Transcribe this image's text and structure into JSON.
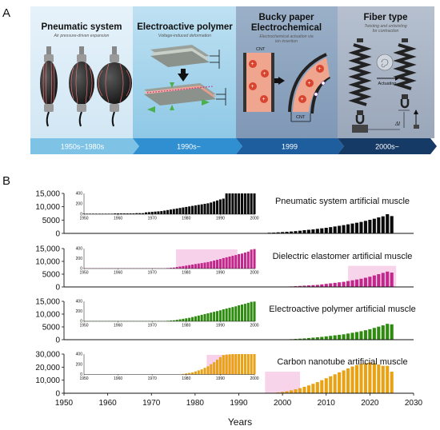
{
  "panel_a": {
    "letter": "A",
    "sections": [
      {
        "title": "Pneumatic system",
        "subtitle": "Air pressure-driven expansion",
        "era": "1950s~1980s"
      },
      {
        "title": "Electroactive polymer",
        "subtitle": "Voltage-induced deformation",
        "era": "1990s~"
      },
      {
        "title_line1": "Bucky paper",
        "title_line2": "Electrochemical",
        "subtitle_line1": "Electrochemical actuation via",
        "subtitle_line2": "ion insertion",
        "era": "1999"
      },
      {
        "title": "Fiber type",
        "subtitle_line1": "Twisting and untwisting",
        "subtitle_line2": "for contraction",
        "era": "2000s~"
      }
    ],
    "labels": {
      "cnt_top": "CNT",
      "cnt_bottom": "CNT",
      "actuating": "Actuating",
      "delta_l": "Δl"
    },
    "colors": {
      "pneumatic_bg": "#dfeef8",
      "eap_bg": "#9ccfe8",
      "bucky_bg": "#8aa2bd",
      "fiber_bg": "#a9b4c4",
      "arrow1": "#7ec3e6",
      "arrow2": "#2f8fd0",
      "arrow3": "#1f5e9e",
      "arrow4": "#163a66"
    }
  },
  "panel_b": {
    "letter": "B",
    "xlabel": "Years",
    "xlim": [
      1950,
      2030
    ],
    "xticks": [
      1950,
      1960,
      1970,
      1980,
      1990,
      2000,
      2010,
      2020,
      2030
    ],
    "inset_xticks": [
      "1950",
      "1960",
      "1970",
      "1980",
      "1990",
      "2000"
    ],
    "inset_yticks": [
      "0",
      "200",
      "400"
    ]
  },
  "chart_data": [
    {
      "type": "bar",
      "title": "Pneumatic system artificial muscle",
      "color": "#0a0a0a",
      "ylim": [
        0,
        15000
      ],
      "yticks": [
        "0",
        "5000",
        "10,000",
        "15,000"
      ],
      "x": [
        1950,
        1951,
        1952,
        1953,
        1954,
        1955,
        1956,
        1957,
        1958,
        1959,
        1960,
        1961,
        1962,
        1963,
        1964,
        1965,
        1966,
        1967,
        1968,
        1969,
        1970,
        1971,
        1972,
        1973,
        1974,
        1975,
        1976,
        1977,
        1978,
        1979,
        1980,
        1981,
        1982,
        1983,
        1984,
        1985,
        1986,
        1987,
        1988,
        1989,
        1990,
        1991,
        1992,
        1993,
        1994,
        1995,
        1996,
        1997,
        1998,
        1999,
        2000,
        2001,
        2002,
        2003,
        2004,
        2005,
        2006,
        2007,
        2008,
        2009,
        2010,
        2011,
        2012,
        2013,
        2014,
        2015,
        2016,
        2017,
        2018,
        2019,
        2020,
        2021,
        2022,
        2023,
        2024,
        2025
      ],
      "values": [
        0,
        0,
        0,
        0,
        0,
        0,
        0,
        0,
        0,
        0,
        0,
        0,
        0,
        0,
        0,
        0,
        0,
        0,
        0,
        0,
        0,
        0,
        0,
        0,
        0,
        0,
        0,
        0,
        0,
        0,
        0,
        0,
        0,
        0,
        0,
        0,
        0,
        0,
        0,
        0,
        0,
        0,
        0,
        0,
        0,
        100,
        150,
        250,
        300,
        400,
        500,
        600,
        700,
        850,
        1000,
        1200,
        1350,
        1500,
        1700,
        1900,
        2100,
        2350,
        2600,
        2850,
        3100,
        3400,
        3700,
        4000,
        4300,
        4700,
        5100,
        5500,
        6000,
        6400,
        7200,
        6500
      ],
      "inset": {
        "ylim": [
          0,
          400
        ],
        "highlight_range": [],
        "values": [
          10,
          10,
          10,
          10,
          10,
          10,
          10,
          10,
          10,
          10,
          15,
          15,
          15,
          15,
          15,
          15,
          15,
          20,
          20,
          20,
          35,
          40,
          45,
          50,
          55,
          60,
          70,
          80,
          90,
          100,
          110,
          120,
          130,
          140,
          150,
          160,
          170,
          180,
          190,
          200,
          210,
          225,
          245,
          265,
          285,
          300,
          400,
          400,
          400,
          400,
          400,
          400,
          400,
          400,
          400,
          400
        ]
      }
    },
    {
      "type": "bar",
      "title": "Dielectric elastomer artificial muscle",
      "color": "#c2278b",
      "highlight_color": "#f6c9e6",
      "ylim": [
        0,
        15000
      ],
      "yticks": [
        "0",
        "5000",
        "10,000",
        "15,000"
      ],
      "x": [
        1950,
        1951,
        1952,
        1953,
        1954,
        1955,
        1956,
        1957,
        1958,
        1959,
        1960,
        1961,
        1962,
        1963,
        1964,
        1965,
        1966,
        1967,
        1968,
        1969,
        1970,
        1971,
        1972,
        1973,
        1974,
        1975,
        1976,
        1977,
        1978,
        1979,
        1980,
        1981,
        1982,
        1983,
        1984,
        1985,
        1986,
        1987,
        1988,
        1989,
        1990,
        1991,
        1992,
        1993,
        1994,
        1995,
        1996,
        1997,
        1998,
        1999,
        2000,
        2001,
        2002,
        2003,
        2004,
        2005,
        2006,
        2007,
        2008,
        2009,
        2010,
        2011,
        2012,
        2013,
        2014,
        2015,
        2016,
        2017,
        2018,
        2019,
        2020,
        2021,
        2022,
        2023,
        2024,
        2025
      ],
      "values": [
        0,
        0,
        0,
        0,
        0,
        0,
        0,
        0,
        0,
        0,
        0,
        0,
        0,
        0,
        0,
        0,
        0,
        0,
        0,
        0,
        0,
        0,
        0,
        0,
        0,
        0,
        0,
        0,
        0,
        0,
        0,
        0,
        0,
        0,
        0,
        0,
        0,
        0,
        0,
        0,
        0,
        0,
        0,
        0,
        0,
        0,
        0,
        0,
        0,
        0,
        0,
        100,
        200,
        300,
        400,
        500,
        600,
        700,
        800,
        1000,
        1200,
        1400,
        1600,
        1800,
        2000,
        2300,
        2600,
        2900,
        3200,
        3600,
        4000,
        4500,
        5000,
        5500,
        6000,
        5600
      ],
      "highlight_range": [
        2015,
        2026
      ],
      "inset": {
        "ylim": [
          0,
          400
        ],
        "highlight_range": [
          1977,
          1995
        ],
        "values": [
          5,
          5,
          5,
          5,
          5,
          5,
          5,
          5,
          5,
          5,
          5,
          5,
          5,
          5,
          5,
          5,
          5,
          5,
          5,
          5,
          5,
          5,
          5,
          5,
          5,
          5,
          5,
          10,
          15,
          20,
          30,
          40,
          50,
          60,
          70,
          80,
          90,
          100,
          110,
          120,
          130,
          145,
          160,
          175,
          190,
          210,
          225,
          240,
          255,
          270,
          290,
          300,
          320,
          340,
          380,
          390
        ]
      }
    },
    {
      "type": "bar",
      "title": "Electroactive polymer artificial muscle",
      "color": "#2e8b10",
      "ylim": [
        0,
        15000
      ],
      "yticks": [
        "0",
        "5000",
        "10,000",
        "15,000"
      ],
      "x": [
        1950,
        1951,
        1952,
        1953,
        1954,
        1955,
        1956,
        1957,
        1958,
        1959,
        1960,
        1961,
        1962,
        1963,
        1964,
        1965,
        1966,
        1967,
        1968,
        1969,
        1970,
        1971,
        1972,
        1973,
        1974,
        1975,
        1976,
        1977,
        1978,
        1979,
        1980,
        1981,
        1982,
        1983,
        1984,
        1985,
        1986,
        1987,
        1988,
        1989,
        1990,
        1991,
        1992,
        1993,
        1994,
        1995,
        1996,
        1997,
        1998,
        1999,
        2000,
        2001,
        2002,
        2003,
        2004,
        2005,
        2006,
        2007,
        2008,
        2009,
        2010,
        2011,
        2012,
        2013,
        2014,
        2015,
        2016,
        2017,
        2018,
        2019,
        2020,
        2021,
        2022,
        2023,
        2024,
        2025
      ],
      "values": [
        0,
        0,
        0,
        0,
        0,
        0,
        0,
        0,
        0,
        0,
        0,
        0,
        0,
        0,
        0,
        0,
        0,
        0,
        0,
        0,
        0,
        0,
        0,
        0,
        0,
        0,
        0,
        0,
        0,
        0,
        0,
        0,
        0,
        0,
        0,
        0,
        0,
        0,
        0,
        0,
        0,
        0,
        0,
        0,
        0,
        0,
        0,
        0,
        0,
        0,
        0,
        100,
        200,
        300,
        400,
        500,
        650,
        800,
        950,
        1100,
        1300,
        1500,
        1700,
        1900,
        2100,
        2400,
        2700,
        3000,
        3300,
        3700,
        4100,
        4600,
        5100,
        5600,
        6200,
        6000
      ],
      "highlight_range": [],
      "inset": {
        "ylim": [
          0,
          400
        ],
        "highlight_range": [],
        "values": [
          5,
          5,
          5,
          5,
          5,
          5,
          5,
          5,
          5,
          5,
          5,
          5,
          5,
          5,
          5,
          5,
          5,
          5,
          5,
          5,
          5,
          5,
          5,
          5,
          5,
          5,
          5,
          10,
          15,
          20,
          30,
          40,
          50,
          60,
          70,
          85,
          100,
          115,
          130,
          145,
          160,
          175,
          190,
          205,
          220,
          240,
          255,
          270,
          285,
          300,
          320,
          335,
          350,
          370,
          390,
          395
        ]
      }
    },
    {
      "type": "bar",
      "title": "Carbon nanotube artificial muscle",
      "color": "#e8a213",
      "highlight_color": "#f6c9e6",
      "ylim": [
        0,
        30000
      ],
      "yticks": [
        "0",
        "10,000",
        "20,000",
        "30,000"
      ],
      "x": [
        1950,
        1951,
        1952,
        1953,
        1954,
        1955,
        1956,
        1957,
        1958,
        1959,
        1960,
        1961,
        1962,
        1963,
        1964,
        1965,
        1966,
        1967,
        1968,
        1969,
        1970,
        1971,
        1972,
        1973,
        1974,
        1975,
        1976,
        1977,
        1978,
        1979,
        1980,
        1981,
        1982,
        1983,
        1984,
        1985,
        1986,
        1987,
        1988,
        1989,
        1990,
        1991,
        1992,
        1993,
        1994,
        1995,
        1996,
        1997,
        1998,
        1999,
        2000,
        2001,
        2002,
        2003,
        2004,
        2005,
        2006,
        2007,
        2008,
        2009,
        2010,
        2011,
        2012,
        2013,
        2014,
        2015,
        2016,
        2017,
        2018,
        2019,
        2020,
        2021,
        2022,
        2023,
        2024,
        2025
      ],
      "values": [
        0,
        0,
        0,
        0,
        0,
        0,
        0,
        0,
        0,
        0,
        0,
        0,
        0,
        0,
        0,
        0,
        0,
        0,
        0,
        0,
        0,
        0,
        0,
        0,
        0,
        0,
        0,
        0,
        0,
        0,
        0,
        0,
        0,
        0,
        0,
        0,
        0,
        0,
        0,
        0,
        0,
        0,
        0,
        0,
        0,
        0,
        0,
        100,
        300,
        600,
        1000,
        1500,
        2200,
        3000,
        3900,
        4900,
        6000,
        7200,
        8500,
        10000,
        11500,
        13000,
        14500,
        16000,
        17500,
        19000,
        20500,
        21500,
        22500,
        23000,
        23500,
        23000,
        22000,
        21000,
        21000,
        16500
      ],
      "highlight_range": [
        1996,
        2004
      ],
      "inset": {
        "ylim": [
          0,
          400
        ],
        "highlight_range": [
          1986,
          1995
        ],
        "values": [
          0,
          0,
          0,
          0,
          0,
          0,
          0,
          0,
          0,
          0,
          0,
          0,
          0,
          0,
          0,
          0,
          0,
          0,
          0,
          0,
          0,
          0,
          0,
          0,
          0,
          0,
          0,
          0,
          0,
          0,
          0,
          0,
          10,
          20,
          30,
          40,
          60,
          80,
          100,
          130,
          160,
          200,
          240,
          290,
          340,
          380,
          390,
          395,
          400,
          400,
          400,
          400,
          400,
          400,
          400,
          400
        ]
      }
    }
  ]
}
